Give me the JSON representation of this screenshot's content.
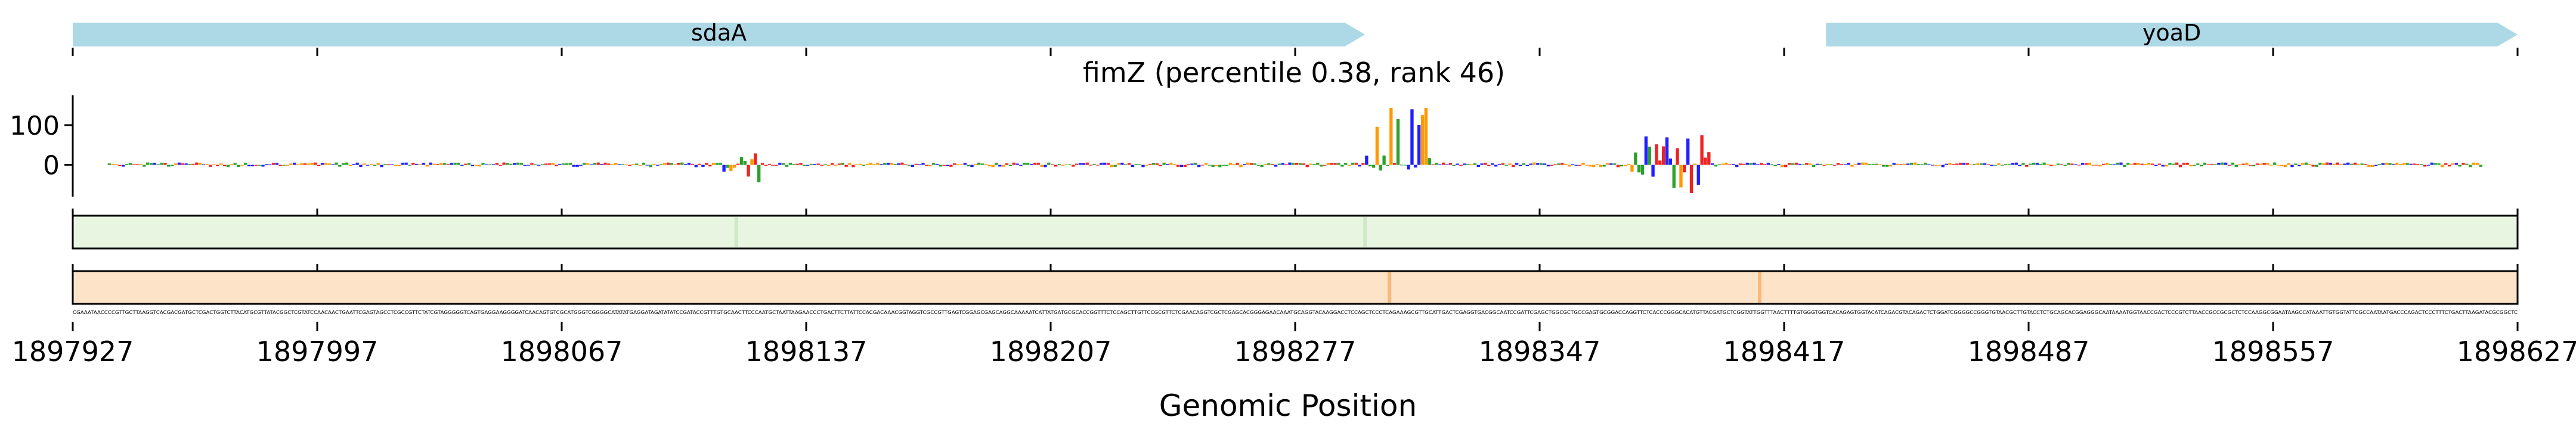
{
  "chart_data": {
    "type": "line",
    "title": "fimZ (percentile 0.38, rank 46)",
    "xlabel": "Genomic Position",
    "xlim": [
      1897927,
      1898627
    ],
    "x_ticks": [
      1897927,
      1897997,
      1898067,
      1898137,
      1898207,
      1898277,
      1898347,
      1898417,
      1898487,
      1898557,
      1898627
    ],
    "x_tick_labels": [
      "1897927",
      "1897997",
      "1898067",
      "1898137",
      "1898207",
      "1898277",
      "1898347",
      "1898417",
      "1898487",
      "1898557",
      "1898627"
    ],
    "genes": [
      {
        "name": "sdaA",
        "start": 1897927,
        "end": 1898297,
        "strand": "+"
      },
      {
        "name": "yoaD",
        "start": 1898429,
        "end": 1898627,
        "strand": "+"
      }
    ],
    "attribution": {
      "y_ticks": [
        0,
        100
      ],
      "ylim": [
        -80,
        175
      ],
      "peaks": [
        {
          "start": 1898113,
          "end": 1898123,
          "max": 40,
          "min": -45
        },
        {
          "start": 1898297,
          "end": 1898315,
          "max": 150,
          "min": -20
        },
        {
          "start": 1898373,
          "end": 1898395,
          "max": 90,
          "min": -75
        }
      ]
    },
    "tracks": [
      {
        "name": "track-1",
        "color": "#e8f5e0",
        "highlights": [
          1898117,
          1898297
        ]
      },
      {
        "name": "track-2",
        "color": "#fde3c8",
        "highlights": [
          1898304,
          1898410
        ]
      }
    ]
  },
  "colors": {
    "gene": "#add8e6",
    "A": "#2ca02c",
    "C": "#1f1fff",
    "G": "#ff9900",
    "T": "#ee2222"
  }
}
